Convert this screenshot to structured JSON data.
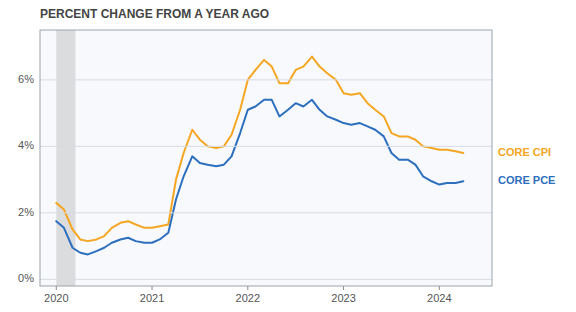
{
  "chart_data": {
    "type": "line",
    "title": "PERCENT CHANGE FROM A YEAR AGO",
    "x": [
      2020.0,
      2020.08,
      2020.17,
      2020.25,
      2020.33,
      2020.42,
      2020.5,
      2020.58,
      2020.67,
      2020.75,
      2020.83,
      2020.92,
      2021.0,
      2021.08,
      2021.17,
      2021.25,
      2021.33,
      2021.42,
      2021.5,
      2021.58,
      2021.67,
      2021.75,
      2021.83,
      2021.92,
      2022.0,
      2022.08,
      2022.17,
      2022.25,
      2022.33,
      2022.42,
      2022.5,
      2022.58,
      2022.67,
      2022.75,
      2022.83,
      2022.92,
      2023.0,
      2023.08,
      2023.17,
      2023.25,
      2023.33,
      2023.42,
      2023.5,
      2023.58,
      2023.67,
      2023.75,
      2023.83,
      2023.92,
      2024.0,
      2024.08,
      2024.17,
      2024.25
    ],
    "series": [
      {
        "name": "CORE CPI",
        "color": "#f5a623",
        "values": [
          0.023,
          0.021,
          0.015,
          0.012,
          0.0115,
          0.012,
          0.013,
          0.0155,
          0.017,
          0.0175,
          0.0165,
          0.0155,
          0.0155,
          0.016,
          0.0165,
          0.03,
          0.038,
          0.045,
          0.042,
          0.04,
          0.0395,
          0.04,
          0.0435,
          0.051,
          0.06,
          0.063,
          0.066,
          0.064,
          0.059,
          0.059,
          0.063,
          0.064,
          0.067,
          0.064,
          0.062,
          0.06,
          0.056,
          0.0555,
          0.056,
          0.053,
          0.051,
          0.049,
          0.044,
          0.043,
          0.043,
          0.042,
          0.04,
          0.0395,
          0.039,
          0.039,
          0.0385,
          0.038
        ]
      },
      {
        "name": "CORE PCE",
        "color": "#2d6fbd",
        "values": [
          0.0175,
          0.0155,
          0.0095,
          0.008,
          0.0075,
          0.0085,
          0.0095,
          0.011,
          0.012,
          0.0125,
          0.0115,
          0.011,
          0.011,
          0.012,
          0.014,
          0.024,
          0.031,
          0.037,
          0.035,
          0.0345,
          0.034,
          0.0345,
          0.037,
          0.044,
          0.051,
          0.052,
          0.054,
          0.054,
          0.049,
          0.051,
          0.053,
          0.052,
          0.054,
          0.051,
          0.049,
          0.048,
          0.047,
          0.0465,
          0.047,
          0.046,
          0.045,
          0.043,
          0.038,
          0.036,
          0.036,
          0.0345,
          0.031,
          0.0295,
          0.0285,
          0.029,
          0.029,
          0.0295
        ]
      }
    ],
    "shade": {
      "x": [
        2020.0,
        2020.2
      ],
      "color": "#c8c8c8"
    },
    "xlim": [
      2019.83,
      2024.55
    ],
    "xticks": [
      2020,
      2021,
      2022,
      2023,
      2024
    ],
    "ylim": [
      -0.002,
      0.075
    ],
    "yticks": [
      {
        "value": 0.0,
        "label": "0%"
      },
      {
        "value": 0.02,
        "label": "2%"
      },
      {
        "value": 0.04,
        "label": "4%"
      },
      {
        "value": 0.06,
        "label": "6%"
      }
    ],
    "grid": true
  }
}
